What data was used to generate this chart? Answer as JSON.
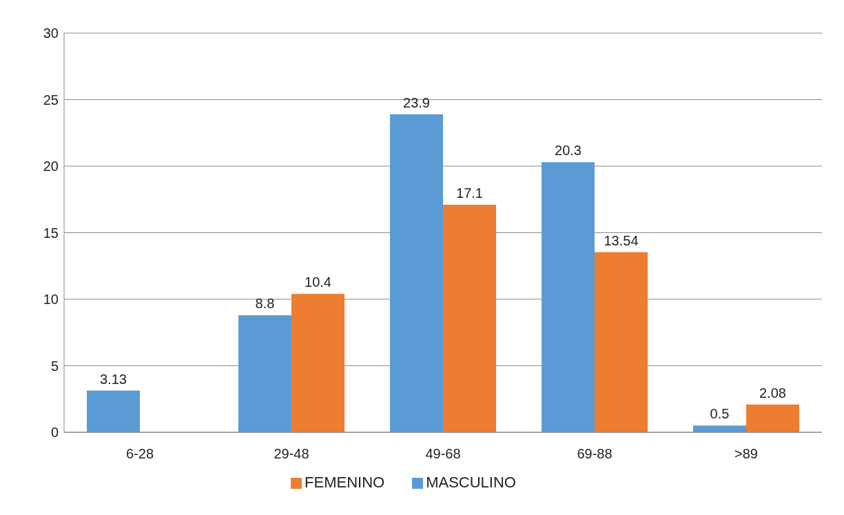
{
  "chart_data": {
    "type": "bar",
    "categories": [
      "6-28",
      "29-48",
      "49-68",
      "69-88",
      ">89"
    ],
    "series": [
      {
        "name": "MASCULINO",
        "color": "#5b9bd5",
        "values": [
          3.13,
          8.8,
          23.9,
          20.3,
          0.5
        ]
      },
      {
        "name": "FEMENINO",
        "color": "#ed7d31",
        "values": [
          null,
          10.4,
          17.1,
          13.54,
          2.08
        ]
      }
    ],
    "ylim": [
      0,
      30
    ],
    "yticks": [
      0,
      5,
      10,
      15,
      20,
      25,
      30
    ],
    "grid": "y",
    "legend": "bottom",
    "data_labels": true
  }
}
